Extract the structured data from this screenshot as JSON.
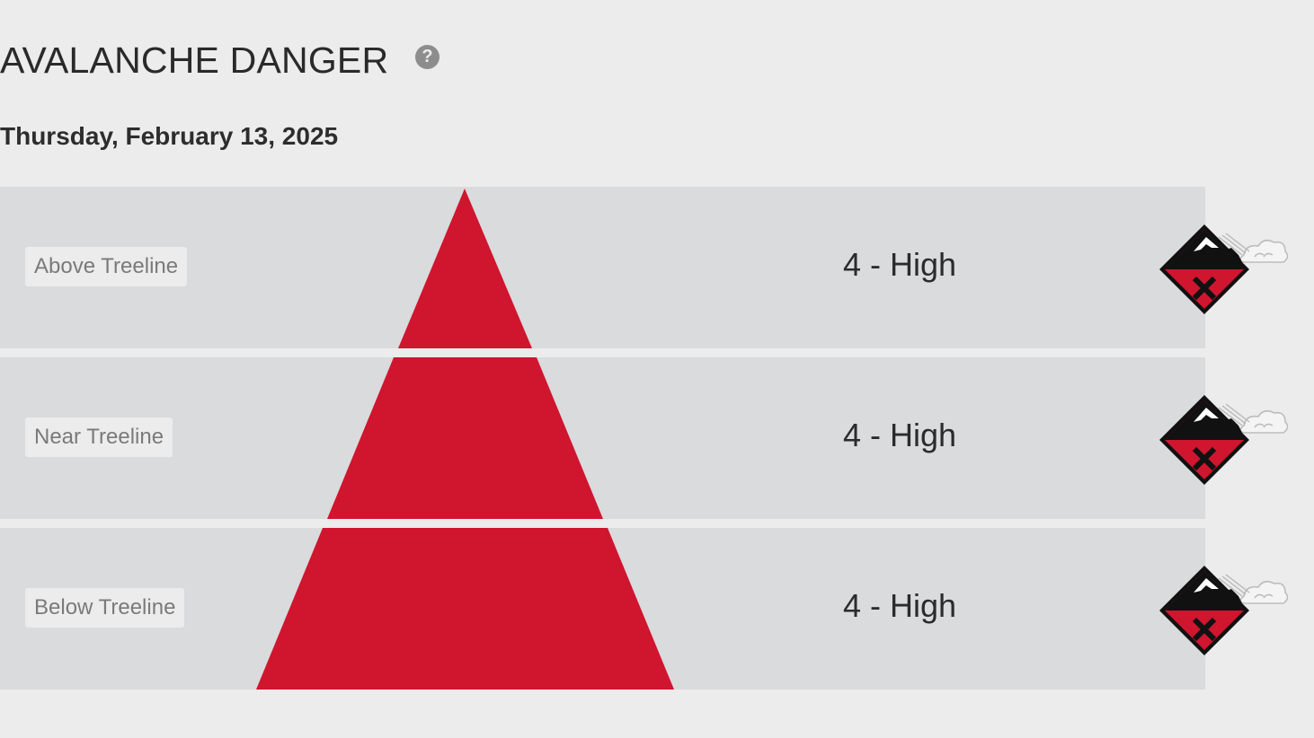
{
  "header": {
    "title": "AVALANCHE DANGER",
    "help_icon": "question-circle-icon"
  },
  "date": "Thursday, February 13, 2025",
  "colors": {
    "high": "#d0152f",
    "band": "#d9dbdd",
    "background": "#ececec"
  },
  "zones": [
    {
      "label": "Above Treeline",
      "rating": "4 - High",
      "level": 4,
      "icon": "avalanche-danger-4-icon"
    },
    {
      "label": "Near Treeline",
      "rating": "4 - High",
      "level": 4,
      "icon": "avalanche-danger-4-icon"
    },
    {
      "label": "Below Treeline",
      "rating": "4 - High",
      "level": 4,
      "icon": "avalanche-danger-4-icon"
    }
  ]
}
